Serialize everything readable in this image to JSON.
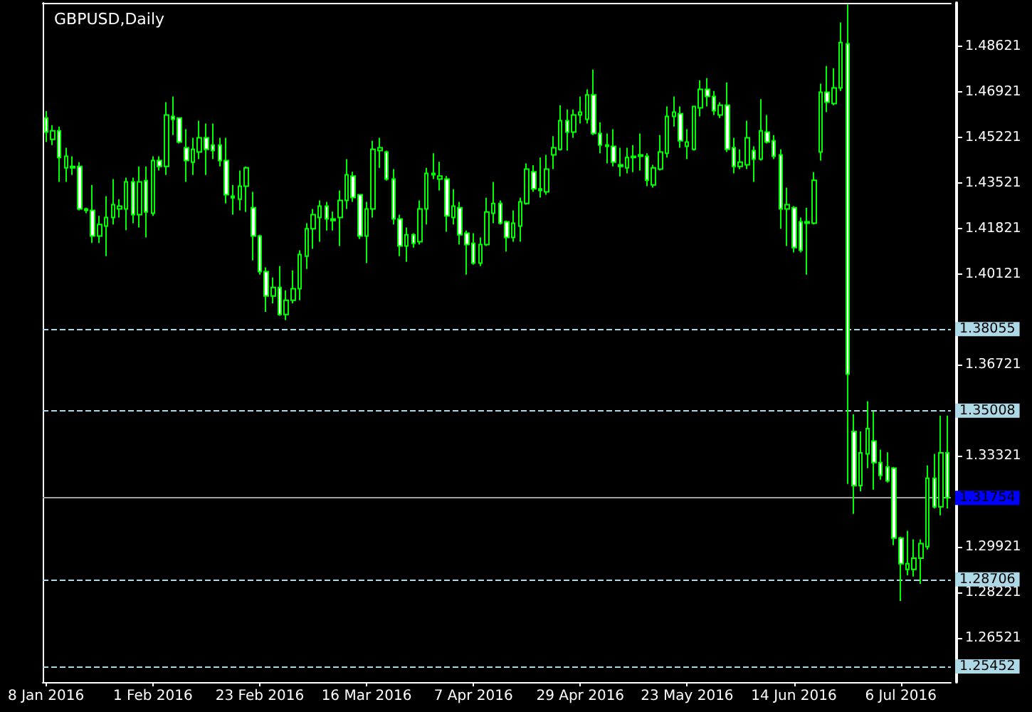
{
  "chart_data": {
    "type": "candlestick",
    "title": "GBPUSD,Daily",
    "categories": [
      "8 Jan 2016",
      null,
      null,
      null,
      null,
      null,
      null,
      null,
      null,
      null,
      null,
      null,
      null,
      null,
      null,
      null,
      "1 Feb 2016",
      null,
      null,
      null,
      null,
      null,
      null,
      null,
      null,
      null,
      null,
      null,
      null,
      null,
      null,
      null,
      "23 Feb 2016",
      null,
      null,
      null,
      null,
      null,
      null,
      null,
      null,
      null,
      null,
      null,
      null,
      null,
      null,
      null,
      "16 Mar 2016",
      null,
      null,
      null,
      null,
      null,
      null,
      null,
      null,
      null,
      null,
      null,
      null,
      null,
      null,
      null,
      "7 Apr 2016",
      null,
      null,
      null,
      null,
      null,
      null,
      null,
      null,
      null,
      null,
      null,
      null,
      null,
      null,
      null,
      "29 Apr 2016",
      null,
      null,
      null,
      null,
      null,
      null,
      null,
      null,
      null,
      null,
      null,
      null,
      null,
      null,
      null,
      "23 May 2016",
      null,
      null,
      null,
      null,
      null,
      null,
      null,
      null,
      null,
      null,
      null,
      null,
      null,
      null,
      null,
      "14 Jun 2016",
      null,
      null,
      null,
      null,
      null,
      null,
      null,
      null,
      null,
      null,
      null,
      null,
      null,
      null,
      null,
      "6 Jul 2016",
      null,
      null,
      null,
      null,
      null,
      null,
      null
    ],
    "series": [
      {
        "color": "#00ff00",
        "ohlc": [
          [
            1.4594,
            1.462,
            1.4504,
            1.4541
          ],
          [
            1.4514,
            1.4567,
            1.4493,
            1.4546
          ],
          [
            1.4546,
            1.4562,
            1.4355,
            1.4446
          ],
          [
            1.4408,
            1.4483,
            1.4355,
            1.4451
          ],
          [
            1.4413,
            1.4451,
            1.4381,
            1.4408
          ],
          [
            1.4413,
            1.4429,
            1.4249,
            1.4254
          ],
          [
            1.4254,
            1.4259,
            1.4238,
            1.4249
          ],
          [
            1.4249,
            1.4344,
            1.4127,
            1.4153
          ],
          [
            1.4153,
            1.4228,
            1.4127,
            1.4196
          ],
          [
            1.419,
            1.4302,
            1.4078,
            1.4222
          ],
          [
            1.4222,
            1.4366,
            1.4196,
            1.427
          ],
          [
            1.4254,
            1.4291,
            1.4222,
            1.4265
          ],
          [
            1.4254,
            1.4371,
            1.4175,
            1.4355
          ],
          [
            1.4355,
            1.4371,
            1.4201,
            1.4233
          ],
          [
            1.4233,
            1.4413,
            1.4185,
            1.4355
          ],
          [
            1.436,
            1.4413,
            1.4148,
            1.4243
          ],
          [
            1.4238,
            1.4451,
            1.4228,
            1.4435
          ],
          [
            1.4435,
            1.4451,
            1.4398,
            1.4413
          ],
          [
            1.4413,
            1.4653,
            1.4381,
            1.4605
          ],
          [
            1.46,
            1.4674,
            1.453,
            1.4589
          ],
          [
            1.4594,
            1.4594,
            1.4499,
            1.4504
          ],
          [
            1.4483,
            1.4552,
            1.4355,
            1.4435
          ],
          [
            1.4429,
            1.452,
            1.4381,
            1.4477
          ],
          [
            1.4467,
            1.4584,
            1.444,
            1.452
          ],
          [
            1.452,
            1.4573,
            1.4381,
            1.4477
          ],
          [
            1.4493,
            1.4573,
            1.444,
            1.4472
          ],
          [
            1.4493,
            1.452,
            1.4413,
            1.4435
          ],
          [
            1.4435,
            1.452,
            1.4275,
            1.4307
          ],
          [
            1.4302,
            1.4344,
            1.4233,
            1.4296
          ],
          [
            1.4291,
            1.4398,
            1.4249,
            1.4339
          ],
          [
            1.4339,
            1.4413,
            1.4243,
            1.4408
          ],
          [
            1.4259,
            1.4318,
            1.4062,
            1.4153
          ],
          [
            1.4153,
            1.4158,
            1.4009,
            1.402
          ],
          [
            1.402,
            1.4036,
            1.387,
            1.3929
          ],
          [
            1.3929,
            1.3998,
            1.3902,
            1.3961
          ],
          [
            1.3961,
            1.4041,
            1.3855,
            1.386
          ],
          [
            1.386,
            1.395,
            1.3839,
            1.3913
          ],
          [
            1.3913,
            1.4025,
            1.3902,
            1.3956
          ],
          [
            1.3956,
            1.41,
            1.3913,
            1.4084
          ],
          [
            1.4078,
            1.4201,
            1.403,
            1.418
          ],
          [
            1.418,
            1.4254,
            1.4105,
            1.4233
          ],
          [
            1.4222,
            1.4286,
            1.4132,
            1.4265
          ],
          [
            1.4265,
            1.4281,
            1.4174,
            1.4217
          ],
          [
            1.4217,
            1.4244,
            1.4174,
            1.4211
          ],
          [
            1.4222,
            1.4323,
            1.4116,
            1.4286
          ],
          [
            1.4286,
            1.444,
            1.4254,
            1.4382
          ],
          [
            1.4377,
            1.4393,
            1.4281,
            1.4297
          ],
          [
            1.4307,
            1.4307,
            1.4142,
            1.4153
          ],
          [
            1.4153,
            1.4281,
            1.4052,
            1.4254
          ],
          [
            1.4254,
            1.4509,
            1.4222,
            1.4477
          ],
          [
            1.4472,
            1.452,
            1.4408,
            1.4483
          ],
          [
            1.4467,
            1.4472,
            1.436,
            1.4366
          ],
          [
            1.4366,
            1.4403,
            1.4196,
            1.4217
          ],
          [
            1.4217,
            1.4233,
            1.4078,
            1.4116
          ],
          [
            1.4116,
            1.4185,
            1.4057,
            1.4158
          ],
          [
            1.4158,
            1.4164,
            1.411,
            1.4126
          ],
          [
            1.4132,
            1.4286,
            1.4121,
            1.4254
          ],
          [
            1.4254,
            1.4408,
            1.4196,
            1.4387
          ],
          [
            1.4387,
            1.4462,
            1.4366,
            1.4382
          ],
          [
            1.4366,
            1.443,
            1.4323,
            1.4377
          ],
          [
            1.4366,
            1.4377,
            1.4169,
            1.4228
          ],
          [
            1.4222,
            1.4328,
            1.4196,
            1.4265
          ],
          [
            1.4259,
            1.4281,
            1.4121,
            1.4158
          ],
          [
            1.4164,
            1.4174,
            1.4009,
            1.4121
          ],
          [
            1.4126,
            1.4164,
            1.4046,
            1.4052
          ],
          [
            1.4052,
            1.4148,
            1.4041,
            1.4121
          ],
          [
            1.4121,
            1.4296,
            1.4116,
            1.4243
          ],
          [
            1.4238,
            1.4355,
            1.4201,
            1.4275
          ],
          [
            1.4275,
            1.4286,
            1.4196,
            1.4201
          ],
          [
            1.4206,
            1.4211,
            1.4095,
            1.4148
          ],
          [
            1.4148,
            1.4249,
            1.4132,
            1.4201
          ],
          [
            1.419,
            1.4297,
            1.4132,
            1.4281
          ],
          [
            1.4275,
            1.4424,
            1.427,
            1.4403
          ],
          [
            1.4393,
            1.4418,
            1.4318,
            1.4329
          ],
          [
            1.4329,
            1.4446,
            1.4297,
            1.4323
          ],
          [
            1.4318,
            1.4456,
            1.4307,
            1.4403
          ],
          [
            1.4456,
            1.4526,
            1.4403,
            1.4483
          ],
          [
            1.4477,
            1.4642,
            1.4472,
            1.4584
          ],
          [
            1.4584,
            1.4626,
            1.4472,
            1.4541
          ],
          [
            1.4541,
            1.4626,
            1.452,
            1.4605
          ],
          [
            1.4605,
            1.4674,
            1.4573,
            1.4616
          ],
          [
            1.4589,
            1.4701,
            1.4573,
            1.468
          ],
          [
            1.468,
            1.4775,
            1.453,
            1.4536
          ],
          [
            1.4536,
            1.4578,
            1.4462,
            1.4493
          ],
          [
            1.4493,
            1.4536,
            1.4424,
            1.4488
          ],
          [
            1.4488,
            1.4552,
            1.4413,
            1.4429
          ],
          [
            1.4419,
            1.4483,
            1.4376,
            1.4413
          ],
          [
            1.4408,
            1.4483,
            1.4387,
            1.4446
          ],
          [
            1.4446,
            1.4493,
            1.4392,
            1.4451
          ],
          [
            1.4451,
            1.4536,
            1.4398,
            1.4456
          ],
          [
            1.4451,
            1.4462,
            1.4339,
            1.4361
          ],
          [
            1.4344,
            1.4419,
            1.4334,
            1.4408
          ],
          [
            1.4403,
            1.453,
            1.4398,
            1.4467
          ],
          [
            1.4462,
            1.4637,
            1.4446,
            1.46
          ],
          [
            1.46,
            1.4674,
            1.4562,
            1.4616
          ],
          [
            1.461,
            1.4637,
            1.4483,
            1.4509
          ],
          [
            1.4488,
            1.4552,
            1.444,
            1.4504
          ],
          [
            1.4477,
            1.4637,
            1.4472,
            1.4637
          ],
          [
            1.4632,
            1.4735,
            1.46,
            1.4701
          ],
          [
            1.4701,
            1.4743,
            1.4637,
            1.4674
          ],
          [
            1.4674,
            1.4695,
            1.4605,
            1.4621
          ],
          [
            1.4605,
            1.4653,
            1.4594,
            1.4642
          ],
          [
            1.4642,
            1.4727,
            1.4467,
            1.4477
          ],
          [
            1.4483,
            1.452,
            1.4387,
            1.4413
          ],
          [
            1.4413,
            1.4477,
            1.4403,
            1.4429
          ],
          [
            1.4419,
            1.4584,
            1.4403,
            1.452
          ],
          [
            1.4472,
            1.4488,
            1.4355,
            1.444
          ],
          [
            1.444,
            1.4664,
            1.4435,
            1.4546
          ],
          [
            1.4541,
            1.4605,
            1.4499,
            1.4504
          ],
          [
            1.4509,
            1.453,
            1.444,
            1.4451
          ],
          [
            1.4456,
            1.4477,
            1.418,
            1.4254
          ],
          [
            1.4254,
            1.4334,
            1.4116,
            1.427
          ],
          [
            1.4259,
            1.4265,
            1.4092,
            1.411
          ],
          [
            1.4206,
            1.4222,
            1.4092,
            1.41
          ],
          [
            1.4201,
            1.4259,
            1.4009,
            1.4206
          ],
          [
            1.4201,
            1.4392,
            1.4196,
            1.4361
          ],
          [
            1.4467,
            1.4722,
            1.4435,
            1.469
          ],
          [
            1.469,
            1.4788,
            1.4616,
            1.4653
          ],
          [
            1.4648,
            1.478,
            1.4642,
            1.4706
          ],
          [
            1.4706,
            1.4951,
            1.4695,
            1.4876
          ],
          [
            1.4871,
            1.5018,
            1.3227,
            1.3637
          ],
          [
            1.3423,
            1.3487,
            1.3115,
            1.3221
          ],
          [
            1.3221,
            1.3423,
            1.32,
            1.3343
          ],
          [
            1.3339,
            1.3536,
            1.3286,
            1.3434
          ],
          [
            1.3387,
            1.3498,
            1.3206,
            1.3307
          ],
          [
            1.3307,
            1.3355,
            1.3243,
            1.3259
          ],
          [
            1.3291,
            1.3345,
            1.3232,
            1.3238
          ],
          [
            1.3286,
            1.3291,
            1.2998,
            1.3025
          ],
          [
            1.3025,
            1.303,
            1.279,
            1.2929
          ],
          [
            1.2908,
            1.3052,
            1.2886,
            1.2929
          ],
          [
            1.2908,
            1.302,
            1.2881,
            1.295
          ],
          [
            1.295,
            1.302,
            1.2854,
            1.3004
          ],
          [
            1.2993,
            1.3296,
            1.2982,
            1.3248
          ],
          [
            1.3248,
            1.3339,
            1.3136,
            1.3142
          ],
          [
            1.3142,
            1.3482,
            1.311,
            1.3343
          ],
          [
            1.3343,
            1.3482,
            1.3136,
            1.31754
          ]
        ]
      }
    ],
    "ylim": [
      1.2487,
      1.5024
    ],
    "yticks": [
      1.26521,
      1.28221,
      1.29921,
      1.33321,
      1.36721,
      1.40121,
      1.41821,
      1.43521,
      1.45221,
      1.46921,
      1.48621
    ],
    "ref_lines": [
      {
        "axis": "y",
        "value": 1.38055,
        "label": "1.38055",
        "color": "#add8e6",
        "line_style": "dashed"
      },
      {
        "axis": "y",
        "value": 1.35008,
        "label": "1.35008",
        "color": "#add8e6",
        "line_style": "dashed"
      },
      {
        "axis": "y",
        "value": 1.28706,
        "label": "1.28706",
        "color": "#add8e6",
        "line_style": "dashed"
      },
      {
        "axis": "y",
        "value": 1.25452,
        "label": "1.25452",
        "color": "#add8e6",
        "line_style": "dashed"
      },
      {
        "axis": "y",
        "value": 1.31754,
        "label": "1.31754",
        "color": "#a0a0a0",
        "line_style": "solid"
      }
    ],
    "grid": false
  }
}
